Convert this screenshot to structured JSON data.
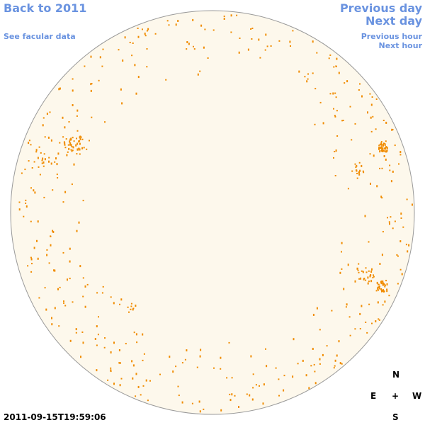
{
  "header": {
    "back": "Back to 2011",
    "facular": "See facular data",
    "previous_day": "Previous day",
    "next_day": "Next day",
    "previous_hour": "Previous hour",
    "next_hour": "Next hour"
  },
  "timestamp": "2011-09-15T19:59:06",
  "compass": {
    "north": "N",
    "east": "E",
    "center": "+",
    "west": "W",
    "south": "S"
  }
}
